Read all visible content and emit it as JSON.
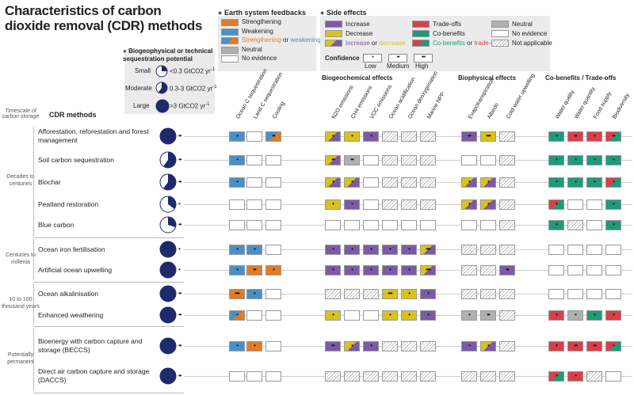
{
  "title": "Characteristics of carbon dioxide removal (CDR) methods",
  "colors": {
    "strengthening": "#e07b2a",
    "weakening": "#4a90c8",
    "neutral_grey": "#b0b0b0",
    "increase": "#7c5aa6",
    "decrease": "#d9c21e",
    "tradeoff": "#d8404a",
    "cobenefit": "#1f9a7a",
    "pie": "#1f2a6b"
  },
  "potential": {
    "heading": "Biogeophysical or technical sequestration potential",
    "items": [
      {
        "label": "Small",
        "desc": "<0.3 GtCO2 yr",
        "sup": "-1",
        "fraction": 0.25
      },
      {
        "label": "Moderate",
        "desc": "0.3-3 GtCO2 yr",
        "sup": "-1",
        "fraction": 0.6
      },
      {
        "label": "Large",
        "desc": ">3 GtCO2 yr",
        "sup": "-1",
        "fraction": 1.0
      }
    ]
  },
  "feedback_legend": {
    "heading": "Earth system feedbacks",
    "items": [
      {
        "key": "strengthening",
        "label": "Strengthening"
      },
      {
        "key": "weakening",
        "label": "Weakening"
      },
      {
        "key": "mixed",
        "label_a": "Strengthening",
        "label_or": " or ",
        "label_b": "weakening"
      },
      {
        "key": "neutral_grey",
        "label": "Neutral"
      },
      {
        "key": "none",
        "label": "No evidence"
      }
    ]
  },
  "side_legend": {
    "heading": "Side effects",
    "left": [
      {
        "key": "increase",
        "label": "Increase"
      },
      {
        "key": "decrease",
        "label": "Decrease"
      },
      {
        "key": "incdec",
        "label_a": "Increase",
        "label_or": " or ",
        "label_b": "decrease"
      }
    ],
    "mid": [
      {
        "key": "tradeoff",
        "label": "Trade-offs"
      },
      {
        "key": "cobenefit",
        "label": "Co-benefits"
      },
      {
        "key": "cotrade",
        "label_a": "Co-benefits",
        "label_or": " or ",
        "label_b": "trade-offs"
      }
    ],
    "right": [
      {
        "key": "neutral_grey",
        "label": "Neutral"
      },
      {
        "key": "none",
        "label": "No evidence"
      },
      {
        "key": "na",
        "label": "Not applicable"
      }
    ],
    "confidence": {
      "heading": "Confidence",
      "levels": [
        "Low",
        "Medium",
        "High"
      ],
      "marks": [
        "•",
        "••",
        "•••"
      ]
    }
  },
  "timescale_heading": "Timescale of carbon storage",
  "methods_heading": "CDR methods",
  "sections": [
    "Biogeochemical effects",
    "Biophysical effects",
    "Co-benefits / Trade-offs"
  ],
  "columns": [
    "Ocean C sequestration",
    "Land C sequestration",
    "Cooling",
    "N2O emissions",
    "CH4 emissions",
    "VOC emissions",
    "Ocean acidification",
    "Ocean deoxygenation",
    "Marine NPP",
    "Evapotranspiration",
    "Albedo",
    "Cold water upwelling",
    "Water quality",
    "Water quantity",
    "Food supply",
    "Biodiversity"
  ],
  "timescales": [
    {
      "label": "Decades to centuries",
      "rows": [
        0,
        4
      ]
    },
    {
      "label": "Centuries to millenia",
      "rows": [
        5,
        6
      ]
    },
    {
      "label": "10 to 100 thousand years",
      "rows": [
        7,
        8
      ]
    },
    {
      "label": "Potentially permanent",
      "rows": [
        9,
        10
      ]
    }
  ],
  "methods": [
    {
      "name": "Afforestation, reforestation and forest management",
      "pot": 1.0,
      "pconf": "••",
      "cells": [
        [
          "weakening",
          "•"
        ],
        [
          "none",
          ""
        ],
        [
          "mixed",
          "••"
        ],
        [
          "incdec",
          "•"
        ],
        [
          "decrease",
          "•"
        ],
        [
          "increase",
          "•"
        ],
        [
          "na",
          ""
        ],
        [
          "na",
          ""
        ],
        [
          "na",
          ""
        ],
        [
          "increase",
          "••"
        ],
        [
          "decrease",
          "•••"
        ],
        [
          "na",
          ""
        ],
        [
          "cobenefit",
          "•"
        ],
        [
          "tradeoff",
          "••"
        ],
        [
          "tradeoff",
          "•"
        ],
        [
          "cotrade",
          "••"
        ]
      ]
    },
    {
      "name": "Soil carbon sequestration",
      "pot": 0.6,
      "pconf": "••",
      "cells": [
        [
          "weakening",
          "•"
        ],
        [
          "none",
          ""
        ],
        [
          "none",
          ""
        ],
        [
          "incdec",
          "••"
        ],
        [
          "neutral_grey",
          "••"
        ],
        [
          "none",
          ""
        ],
        [
          "na",
          ""
        ],
        [
          "na",
          ""
        ],
        [
          "na",
          ""
        ],
        [
          "none",
          ""
        ],
        [
          "none",
          ""
        ],
        [
          "na",
          ""
        ],
        [
          "cobenefit",
          "•"
        ],
        [
          "cobenefit",
          "•"
        ],
        [
          "cobenefit",
          "•"
        ],
        [
          "cobenefit",
          "•"
        ]
      ]
    },
    {
      "name": "Biochar",
      "pot": 0.6,
      "pconf": "••",
      "cells": [
        [
          "weakening",
          "•"
        ],
        [
          "none",
          ""
        ],
        [
          "none",
          ""
        ],
        [
          "incdec",
          "•"
        ],
        [
          "incdec",
          "•"
        ],
        [
          "none",
          ""
        ],
        [
          "na",
          ""
        ],
        [
          "na",
          ""
        ],
        [
          "na",
          ""
        ],
        [
          "incdec",
          "•"
        ],
        [
          "incdec",
          "•"
        ],
        [
          "na",
          ""
        ],
        [
          "cobenefit",
          "•"
        ],
        [
          "cobenefit",
          "•"
        ],
        [
          "cobenefit",
          "•"
        ],
        [
          "cotrade",
          "•"
        ]
      ]
    },
    {
      "name": "Peatland restoration",
      "pot": 0.35,
      "pconf": "•",
      "cells": [
        [
          "none",
          ""
        ],
        [
          "none",
          ""
        ],
        [
          "none",
          ""
        ],
        [
          "decrease",
          "•"
        ],
        [
          "increase",
          "•"
        ],
        [
          "none",
          ""
        ],
        [
          "na",
          ""
        ],
        [
          "na",
          ""
        ],
        [
          "na",
          ""
        ],
        [
          "incdec",
          "•"
        ],
        [
          "incdec",
          "•"
        ],
        [
          "na",
          ""
        ],
        [
          "cotrade",
          "•"
        ],
        [
          "none",
          ""
        ],
        [
          "none",
          ""
        ],
        [
          "cobenefit",
          "•"
        ]
      ]
    },
    {
      "name": "Blue carbon",
      "pot": 0.3,
      "pconf": "••",
      "cells": [
        [
          "none",
          ""
        ],
        [
          "none",
          ""
        ],
        [
          "none",
          ""
        ],
        [
          "none",
          ""
        ],
        [
          "none",
          ""
        ],
        [
          "none",
          ""
        ],
        [
          "none",
          ""
        ],
        [
          "none",
          ""
        ],
        [
          "none",
          ""
        ],
        [
          "none",
          ""
        ],
        [
          "none",
          ""
        ],
        [
          "na",
          ""
        ],
        [
          "cobenefit",
          "•"
        ],
        [
          "na",
          ""
        ],
        [
          "none",
          ""
        ],
        [
          "cobenefit",
          "•"
        ]
      ]
    },
    {
      "name": "Ocean iron fertilisation",
      "pot": 1.0,
      "pconf": "•",
      "cells": [
        [
          "weakening",
          "•"
        ],
        [
          "weakening",
          "•"
        ],
        [
          "none",
          ""
        ],
        [
          "increase",
          "•"
        ],
        [
          "increase",
          "•"
        ],
        [
          "increase",
          "•"
        ],
        [
          "increase",
          "•"
        ],
        [
          "increase",
          "•"
        ],
        [
          "incdec",
          "•••"
        ],
        [
          "na",
          ""
        ],
        [
          "na",
          ""
        ],
        [
          "na",
          ""
        ],
        [
          "none",
          ""
        ],
        [
          "none",
          ""
        ],
        [
          "none",
          ""
        ],
        [
          "none",
          ""
        ]
      ]
    },
    {
      "name": "Artificial ocean upwelling",
      "pot": 1.0,
      "pconf": "•",
      "cells": [
        [
          "weakening",
          "•"
        ],
        [
          "strengthening",
          "••"
        ],
        [
          "strengthening",
          "•"
        ],
        [
          "increase",
          "•"
        ],
        [
          "increase",
          "•"
        ],
        [
          "increase",
          "•"
        ],
        [
          "increase",
          "•"
        ],
        [
          "increase",
          "•"
        ],
        [
          "incdec",
          "•••"
        ],
        [
          "na",
          ""
        ],
        [
          "na",
          ""
        ],
        [
          "increase",
          "••"
        ],
        [
          "none",
          ""
        ],
        [
          "none",
          ""
        ],
        [
          "none",
          ""
        ],
        [
          "none",
          ""
        ]
      ]
    },
    {
      "name": "Ocean alkalinisation",
      "pot": 1.0,
      "pconf": "••",
      "cells": [
        [
          "strengthening",
          "•••"
        ],
        [
          "weakening",
          "•"
        ],
        [
          "none",
          ""
        ],
        [
          "na",
          ""
        ],
        [
          "na",
          ""
        ],
        [
          "na",
          ""
        ],
        [
          "decrease",
          "•••"
        ],
        [
          "decrease",
          "•"
        ],
        [
          "increase",
          "•"
        ],
        [
          "na",
          ""
        ],
        [
          "na",
          ""
        ],
        [
          "na",
          ""
        ],
        [
          "none",
          ""
        ],
        [
          "none",
          ""
        ],
        [
          "none",
          ""
        ],
        [
          "none",
          ""
        ]
      ]
    },
    {
      "name": "Enhanced weathering",
      "pot": 1.0,
      "pconf": "••",
      "cells": [
        [
          "mixed",
          "•"
        ],
        [
          "none",
          ""
        ],
        [
          "none",
          ""
        ],
        [
          "decrease",
          "•"
        ],
        [
          "none",
          ""
        ],
        [
          "none",
          ""
        ],
        [
          "decrease",
          "•"
        ],
        [
          "decrease",
          "•"
        ],
        [
          "increase",
          "•"
        ],
        [
          "neutral_grey",
          "•"
        ],
        [
          "neutral_grey",
          "••"
        ],
        [
          "na",
          ""
        ],
        [
          "tradeoff",
          "•"
        ],
        [
          "neutral_grey",
          "•"
        ],
        [
          "cobenefit",
          "•"
        ],
        [
          "tradeoff",
          "•"
        ]
      ]
    },
    {
      "name": "Bioenergy with carbon capture and storage (BECCS)",
      "pot": 1.0,
      "pconf": "••",
      "cells": [
        [
          "weakening",
          "•"
        ],
        [
          "strengthening",
          "•"
        ],
        [
          "none",
          ""
        ],
        [
          "increase",
          "••"
        ],
        [
          "incdec",
          "•"
        ],
        [
          "increase",
          "•"
        ],
        [
          "na",
          ""
        ],
        [
          "na",
          ""
        ],
        [
          "na",
          ""
        ],
        [
          "increase",
          "•"
        ],
        [
          "incdec",
          "•"
        ],
        [
          "na",
          ""
        ],
        [
          "tradeoff",
          "•"
        ],
        [
          "tradeoff",
          "••"
        ],
        [
          "tradeoff",
          "••"
        ],
        [
          "cotrade",
          "•"
        ]
      ]
    },
    {
      "name": "Direct air carbon capture and storage (DACCS)",
      "pot": 1.0,
      "pconf": "••",
      "cells": [
        [
          "none",
          ""
        ],
        [
          "none",
          ""
        ],
        [
          "none",
          ""
        ],
        [
          "na",
          ""
        ],
        [
          "na",
          ""
        ],
        [
          "na",
          ""
        ],
        [
          "na",
          ""
        ],
        [
          "na",
          ""
        ],
        [
          "na",
          ""
        ],
        [
          "na",
          ""
        ],
        [
          "na",
          ""
        ],
        [
          "na",
          ""
        ],
        [
          "cotrade",
          "•"
        ],
        [
          "tradeoff",
          "•"
        ],
        [
          "na",
          ""
        ],
        [
          "none",
          ""
        ]
      ]
    }
  ]
}
